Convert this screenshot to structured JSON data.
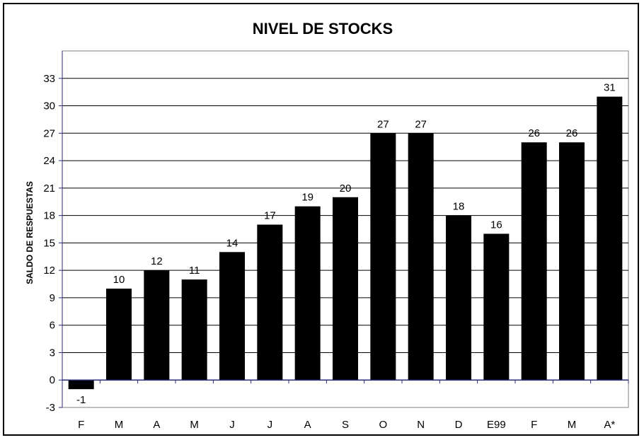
{
  "chart_data": {
    "type": "bar",
    "title": "NIVEL DE STOCKS",
    "xlabel": "",
    "ylabel": "SALDO DE RESPUESTAS",
    "categories": [
      "F",
      "M",
      "A",
      "M",
      "J",
      "J",
      "A",
      "S",
      "O",
      "N",
      "D",
      "E99",
      "F",
      "M",
      "A*"
    ],
    "values": [
      -1,
      10,
      12,
      11,
      14,
      17,
      19,
      20,
      27,
      27,
      18,
      16,
      26,
      26,
      31
    ],
    "ylim": [
      -3,
      36
    ],
    "yticks": [
      -3,
      0,
      3,
      6,
      9,
      12,
      15,
      18,
      21,
      24,
      27,
      30,
      33
    ],
    "grid": true,
    "legend": "none",
    "colors": {
      "bar": "#000000",
      "grid": "#000000",
      "axis": "#2b2b7a",
      "plot_border": "#808080",
      "background": "#ffffff"
    }
  }
}
